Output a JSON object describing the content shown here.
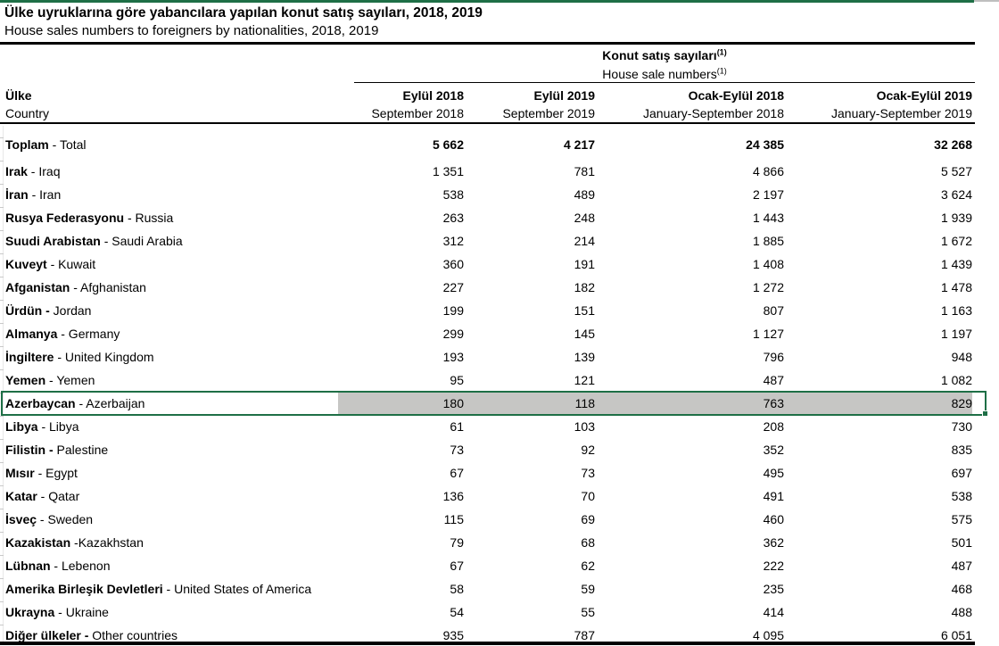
{
  "title": {
    "tr": "Ülke uyruklarına göre yabancılara yapılan konut satış sayıları, 2018, 2019",
    "en": "House sales numbers to foreigners by nationalities, 2018, 2019"
  },
  "group_header": {
    "tr": "Konut satış sayıları",
    "en": "House sale numbers",
    "footnote_marker": "(1)"
  },
  "columns": {
    "country": {
      "tr": "Ülke",
      "en": "Country"
    },
    "cols": [
      {
        "tr": "Eylül 2018",
        "en": "September 2018"
      },
      {
        "tr": "Eylül 2019",
        "en": "September 2019"
      },
      {
        "tr": "Ocak-Eylül 2018",
        "en": "January-September 2018"
      },
      {
        "tr": "Ocak-Eylül 2019",
        "en": "January-September 2019"
      }
    ]
  },
  "table": {
    "rows": [
      {
        "bold": "Toplam",
        "rest": " - Total",
        "values": [
          "5 662",
          "4 217",
          "24 385",
          "32 268"
        ],
        "total": true
      },
      {
        "bold": "Irak",
        "rest": " - Iraq",
        "values": [
          "1 351",
          "781",
          "4 866",
          "5 527"
        ]
      },
      {
        "bold": "İran",
        "rest": " - Iran",
        "values": [
          "538",
          "489",
          "2 197",
          "3 624"
        ]
      },
      {
        "bold": "Rusya Federasyonu",
        "rest": " - Russia",
        "values": [
          "263",
          "248",
          "1 443",
          "1 939"
        ]
      },
      {
        "bold": "Suudi Arabistan",
        "rest": " - Saudi Arabia",
        "values": [
          "312",
          "214",
          "1 885",
          "1 672"
        ]
      },
      {
        "bold": "Kuveyt",
        "rest": " - Kuwait",
        "values": [
          "360",
          "191",
          "1 408",
          "1 439"
        ]
      },
      {
        "bold": "Afganistan",
        "rest": " - Afghanistan",
        "values": [
          "227",
          "182",
          "1 272",
          "1 478"
        ]
      },
      {
        "bold": "Ürdün -",
        "rest": " Jordan",
        "values": [
          "199",
          "151",
          "807",
          "1 163"
        ]
      },
      {
        "bold": "Almanya",
        "rest": " - Germany",
        "values": [
          "299",
          "145",
          "1 127",
          "1 197"
        ]
      },
      {
        "bold": "İngiltere",
        "rest": " - United Kingdom",
        "values": [
          "193",
          "139",
          "796",
          "948"
        ]
      },
      {
        "bold": "Yemen",
        "rest": " - Yemen",
        "values": [
          "95",
          "121",
          "487",
          "1 082"
        ]
      },
      {
        "bold": "Azerbaycan",
        "rest": " - Azerbaijan",
        "values": [
          "180",
          "118",
          "763",
          "829"
        ],
        "highlighted": true
      },
      {
        "bold": "Libya",
        "rest": " - Libya",
        "values": [
          "61",
          "103",
          "208",
          "730"
        ]
      },
      {
        "bold": "Filistin -",
        "rest": " Palestine",
        "values": [
          "73",
          "92",
          "352",
          "835"
        ]
      },
      {
        "bold": "Mısır",
        "rest": " - Egypt",
        "values": [
          "67",
          "73",
          "495",
          "697"
        ]
      },
      {
        "bold": "Katar",
        "rest": " - Qatar",
        "values": [
          "136",
          "70",
          "491",
          "538"
        ]
      },
      {
        "bold": "İsveç",
        "rest": " - Sweden",
        "values": [
          "115",
          "69",
          "460",
          "575"
        ]
      },
      {
        "bold": "Kazakistan",
        "rest": " -Kazakhstan",
        "values": [
          "79",
          "68",
          "362",
          "501"
        ]
      },
      {
        "bold": "Lübnan",
        "rest": " - Lebenon",
        "values": [
          "67",
          "62",
          "222",
          "487"
        ]
      },
      {
        "bold": "Amerika Birleşik Devletleri",
        "rest": " - United States of America",
        "values": [
          "58",
          "59",
          "235",
          "468"
        ]
      },
      {
        "bold": "Ukrayna",
        "rest": " - Ukraine",
        "values": [
          "54",
          "55",
          "414",
          "488"
        ]
      },
      {
        "bold": "Diğer ülkeler -",
        "rest": " Other countries",
        "values": [
          "935",
          "787",
          "4 095",
          "6 051"
        ]
      }
    ]
  },
  "selection": {
    "row": "Azerbaycan - Azerbaijan",
    "border_color": "#1e6f46",
    "fill_color": "#c6c6c4"
  }
}
